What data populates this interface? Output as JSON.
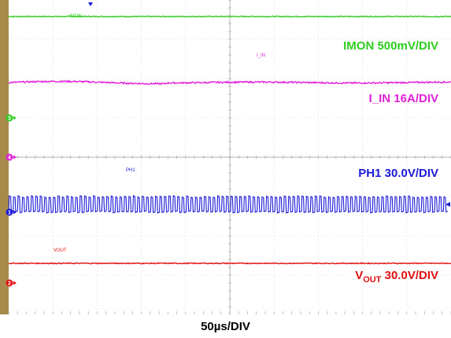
{
  "chart_data": {
    "type": "line",
    "title": "",
    "timebase": "50µs/DIV",
    "grid": true,
    "divisions": {
      "x": 10,
      "y": 8
    },
    "series": [
      {
        "key": "imon",
        "name": "IMON",
        "scale_label": "IMON 500mV/DIV",
        "color": "#2ecc1f",
        "shape": "flat",
        "level_div": 7.58,
        "noise_div": 0.012,
        "marker": "3",
        "marker_div": 5.0
      },
      {
        "key": "iin",
        "name": "I_IN",
        "scale_label": "I_IN 16A/DIV",
        "color": "#e020d8",
        "shape": "flat",
        "level_div": 5.9,
        "noise_div": 0.02,
        "marker": "4",
        "marker_div": 4.0
      },
      {
        "key": "ph1",
        "name": "PH1",
        "scale_label": "PH1 30.0V/DIV",
        "color": "#1a1ad8",
        "shape": "square",
        "high_div": 3.0,
        "low_div": 2.6,
        "cycles": 99,
        "marker": "1",
        "marker_div": 2.6
      },
      {
        "key": "vout",
        "name": "VOUT",
        "label_main": "V",
        "label_sub": "OUT",
        "label_rest": " 30.0V/DIV",
        "color": "#e01010",
        "shape": "flat",
        "level_div": 1.3,
        "noise_div": 0.012,
        "marker": "2",
        "marker_div": 0.8
      }
    ]
  }
}
